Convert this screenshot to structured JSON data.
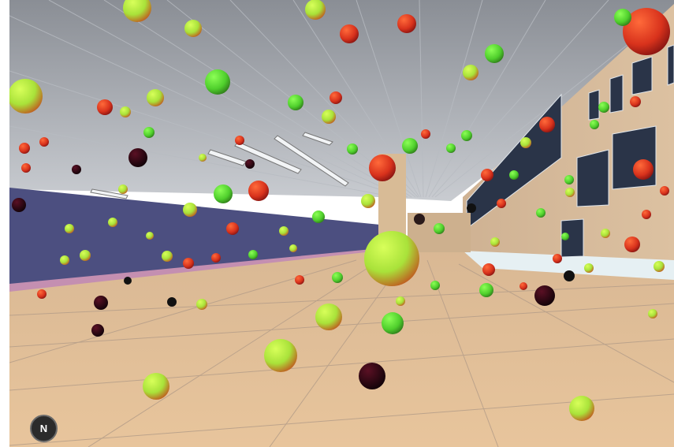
{
  "scene": {
    "description_colors": {
      "ceiling": "#9ea3ab",
      "wall_left": "#4d4f82",
      "floor": "#e2bf97",
      "building": "#d9bc9b",
      "sky_floor": "#e8f2f6"
    },
    "sphere_color_stops": [
      "#c0ff40",
      "#e06020",
      "#200010"
    ]
  },
  "nav_button": {
    "label": "N"
  }
}
